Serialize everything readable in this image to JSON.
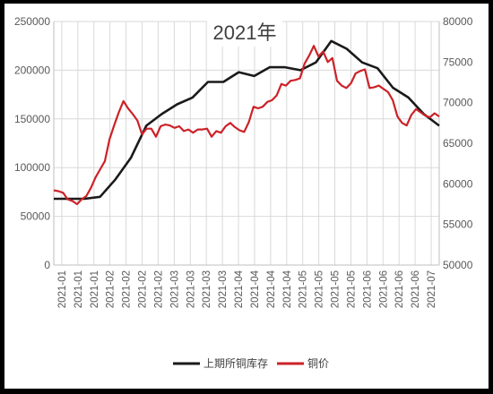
{
  "chart_data": {
    "type": "line",
    "title": "2021年",
    "y_left": {
      "min": 0,
      "max": 250000,
      "ticks": [
        0,
        50000,
        100000,
        150000,
        200000,
        250000
      ]
    },
    "y_right": {
      "min": 50000,
      "max": 80000,
      "ticks": [
        50000,
        55000,
        60000,
        65000,
        70000,
        75000,
        80000
      ]
    },
    "x_tick_labels": [
      "2021-01",
      "2021-01",
      "2021-01",
      "2021-02",
      "2021-02",
      "2021-02",
      "2021-02",
      "2021-03",
      "2021-03",
      "2021-03",
      "2021-03",
      "2021-04",
      "2021-04",
      "2021-04",
      "2021-04",
      "2021-05",
      "2021-05",
      "2021-05",
      "2021-05",
      "2021-06",
      "2021-06",
      "2021-06",
      "2021-06",
      "2021-07"
    ],
    "grid": true,
    "legend_position": "bottom",
    "series": [
      {
        "name": "上期所铜库存",
        "axis": "left",
        "color": "#1a1a1a",
        "values": [
          68000,
          68000,
          68000,
          70000,
          88000,
          110000,
          143000,
          155000,
          165000,
          172000,
          188000,
          188000,
          198000,
          194000,
          203000,
          203000,
          200000,
          208000,
          230000,
          222000,
          208000,
          202000,
          182000,
          172000,
          155000,
          143000
        ]
      },
      {
        "name": "铜价",
        "axis": "right",
        "color": "#cc2228",
        "values": [
          59200,
          59100,
          58900,
          58100,
          57900,
          57500,
          58100,
          58500,
          59500,
          60800,
          61800,
          62800,
          65500,
          67200,
          68800,
          70200,
          69300,
          68600,
          67800,
          66100,
          66800,
          66800,
          65800,
          67100,
          67300,
          67200,
          66900,
          67100,
          66500,
          66700,
          66300,
          66700,
          66700,
          66800,
          65800,
          66500,
          66300,
          67100,
          67500,
          67000,
          66600,
          66400,
          67600,
          69500,
          69300,
          69500,
          70100,
          70300,
          70900,
          72300,
          72100,
          72700,
          72800,
          73000,
          74800,
          75800,
          77000,
          75700,
          76300,
          75000,
          75500,
          72700,
          72100,
          71800,
          72400,
          73600,
          73900,
          74100,
          71800,
          71900,
          72100,
          71700,
          71300,
          70300,
          68300,
          67500,
          67200,
          68500,
          69200,
          68800,
          68400,
          68200,
          68700,
          68300
        ]
      }
    ]
  }
}
